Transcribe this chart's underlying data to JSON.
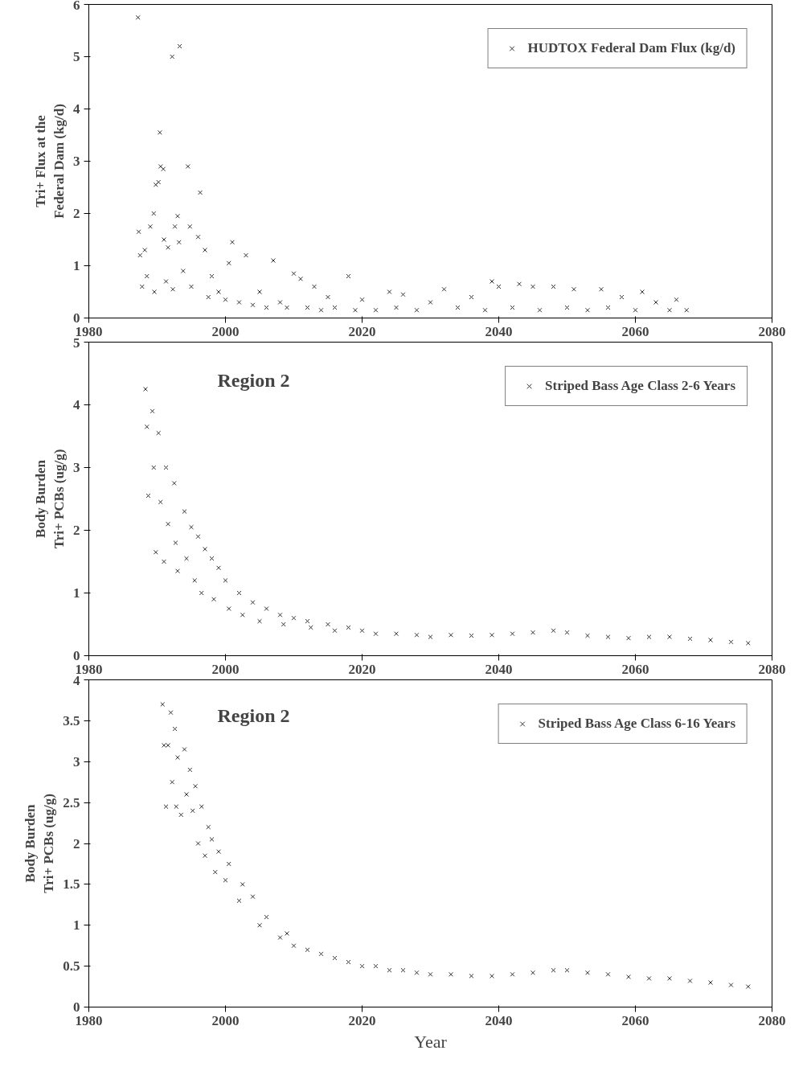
{
  "chart_data": [
    {
      "type": "scatter",
      "ylabel": "Tri+ Flux at the\nFederal Dam (kg/d)",
      "xlim": [
        1980,
        2080
      ],
      "xticks": [
        1980,
        2000,
        2020,
        2040,
        2060,
        2080
      ],
      "ylim": [
        0,
        6
      ],
      "yticks": [
        0,
        1,
        2,
        3,
        4,
        5,
        6
      ],
      "grid": false,
      "legend": "top right",
      "marker": "cross",
      "series": [
        {
          "name": "HUDTOX Federal Dam Flux (kg/d)",
          "color": "#333333",
          "x": [
            1987.2,
            1987.3,
            1987.5,
            1987.8,
            1988.2,
            1988.5,
            1989,
            1989.5,
            1989.6,
            1989.8,
            1990.2,
            1990.4,
            1990.5,
            1990.9,
            1991,
            1991.3,
            1991.6,
            1992.2,
            1992.3,
            1992.6,
            1993,
            1993.2,
            1993.3,
            1993.8,
            1994.5,
            1994.8,
            1995,
            1996,
            1996.3,
            1997,
            1997.5,
            1998,
            1999,
            2000,
            2000.5,
            2001,
            2002,
            2003,
            2004,
            2005,
            2006,
            2007,
            2008,
            2009,
            2010,
            2011,
            2012,
            2013,
            2014,
            2015,
            2016,
            2018,
            2019,
            2020,
            2022,
            2024,
            2025,
            2026,
            2028,
            2030,
            2032,
            2034,
            2036,
            2038,
            2039,
            2040,
            2042,
            2043,
            2045,
            2046,
            2048,
            2050,
            2051,
            2053,
            2055,
            2056,
            2058,
            2060,
            2061,
            2063,
            2065,
            2066,
            2067.5
          ],
          "values": [
            5.75,
            1.65,
            1.2,
            0.6,
            1.3,
            0.8,
            1.75,
            2.0,
            0.5,
            2.55,
            2.6,
            3.55,
            2.9,
            2.85,
            1.5,
            0.7,
            1.35,
            5.0,
            0.55,
            1.75,
            1.95,
            1.45,
            5.2,
            0.9,
            2.9,
            1.75,
            0.6,
            1.55,
            2.4,
            1.3,
            0.4,
            0.8,
            0.5,
            0.35,
            1.05,
            1.45,
            0.3,
            1.2,
            0.25,
            0.5,
            0.2,
            1.1,
            0.3,
            0.2,
            0.85,
            0.75,
            0.2,
            0.6,
            0.15,
            0.4,
            0.2,
            0.8,
            0.15,
            0.35,
            0.15,
            0.5,
            0.2,
            0.45,
            0.15,
            0.3,
            0.55,
            0.2,
            0.4,
            0.15,
            0.7,
            0.6,
            0.2,
            0.65,
            0.6,
            0.15,
            0.6,
            0.2,
            0.55,
            0.15,
            0.55,
            0.2,
            0.4,
            0.15,
            0.5,
            0.3,
            0.15,
            0.35,
            0.15
          ]
        }
      ]
    },
    {
      "type": "scatter",
      "ylabel": "Body Burden\nTri+ PCBs (ug/g)",
      "annotations": [
        "Region 2"
      ],
      "xlim": [
        1980,
        2080
      ],
      "xticks": [
        1980,
        2000,
        2020,
        2040,
        2060,
        2080
      ],
      "ylim": [
        0,
        5
      ],
      "yticks": [
        0,
        1,
        2,
        3,
        4,
        5
      ],
      "grid": false,
      "legend": "top right",
      "marker": "cross",
      "series": [
        {
          "name": "Striped Bass Age Class 2-6 Years",
          "color": "#333333",
          "x": [
            1988.3,
            1988.5,
            1988.7,
            1989.3,
            1989.5,
            1989.8,
            1990.2,
            1990.5,
            1991,
            1991.3,
            1991.6,
            1992.5,
            1992.7,
            1993,
            1994,
            1994.3,
            1995,
            1995.5,
            1996,
            1996.5,
            1997,
            1998,
            1998.3,
            1999,
            2000,
            2000.5,
            2002,
            2002.5,
            2004,
            2005,
            2006,
            2008,
            2008.5,
            2010,
            2012,
            2012.5,
            2015,
            2016,
            2018,
            2020,
            2022,
            2025,
            2028,
            2030,
            2033,
            2036,
            2039,
            2042,
            2045,
            2048,
            2050,
            2053,
            2056,
            2059,
            2062,
            2065,
            2068,
            2071,
            2074,
            2076.5
          ],
          "values": [
            4.25,
            3.65,
            2.55,
            3.9,
            3.0,
            1.65,
            3.55,
            2.45,
            1.5,
            3.0,
            2.1,
            2.75,
            1.8,
            1.35,
            2.3,
            1.55,
            2.05,
            1.2,
            1.9,
            1.0,
            1.7,
            1.55,
            0.9,
            1.4,
            1.2,
            0.75,
            1.0,
            0.65,
            0.85,
            0.55,
            0.75,
            0.65,
            0.5,
            0.6,
            0.55,
            0.45,
            0.5,
            0.4,
            0.45,
            0.4,
            0.35,
            0.35,
            0.33,
            0.3,
            0.33,
            0.32,
            0.33,
            0.35,
            0.37,
            0.4,
            0.37,
            0.32,
            0.3,
            0.28,
            0.3,
            0.3,
            0.27,
            0.25,
            0.22,
            0.2
          ]
        }
      ]
    },
    {
      "type": "scatter",
      "xlabel": "Year",
      "ylabel": "Body Burden\nTri+ PCBs (ug/g)",
      "annotations": [
        "Region 2"
      ],
      "xlim": [
        1980,
        2080
      ],
      "xticks": [
        1980,
        2000,
        2020,
        2040,
        2060,
        2080
      ],
      "ylim": [
        0,
        4
      ],
      "yticks": [
        0,
        0.5,
        1,
        1.5,
        2,
        2.5,
        3,
        3.5,
        4
      ],
      "grid": false,
      "legend": "top right",
      "marker": "cross",
      "series": [
        {
          "name": "Striped Bass Age Class 6-16 Years",
          "color": "#333333",
          "x": [
            1990.8,
            1991,
            1991.3,
            1991.6,
            1992,
            1992.2,
            1992.6,
            1992.8,
            1993,
            1993.5,
            1994,
            1994.3,
            1994.8,
            1995.2,
            1995.6,
            1996,
            1996.5,
            1997,
            1997.5,
            1998,
            1998.5,
            1999,
            2000,
            2000.5,
            2002,
            2002.5,
            2004,
            2005,
            2006,
            2008,
            2009,
            2010,
            2012,
            2014,
            2016,
            2018,
            2020,
            2022,
            2024,
            2026,
            2028,
            2030,
            2033,
            2036,
            2039,
            2042,
            2045,
            2048,
            2050,
            2053,
            2056,
            2059,
            2062,
            2065,
            2068,
            2071,
            2074,
            2076.5
          ],
          "values": [
            3.7,
            3.2,
            2.45,
            3.2,
            3.6,
            2.75,
            3.4,
            2.45,
            3.05,
            2.35,
            3.15,
            2.6,
            2.9,
            2.4,
            2.7,
            2.0,
            2.45,
            1.85,
            2.2,
            2.05,
            1.65,
            1.9,
            1.55,
            1.75,
            1.3,
            1.5,
            1.35,
            1.0,
            1.1,
            0.85,
            0.9,
            0.75,
            0.7,
            0.65,
            0.6,
            0.55,
            0.5,
            0.5,
            0.45,
            0.45,
            0.42,
            0.4,
            0.4,
            0.38,
            0.38,
            0.4,
            0.42,
            0.45,
            0.45,
            0.42,
            0.4,
            0.37,
            0.35,
            0.35,
            0.32,
            0.3,
            0.27,
            0.25
          ]
        }
      ]
    }
  ]
}
